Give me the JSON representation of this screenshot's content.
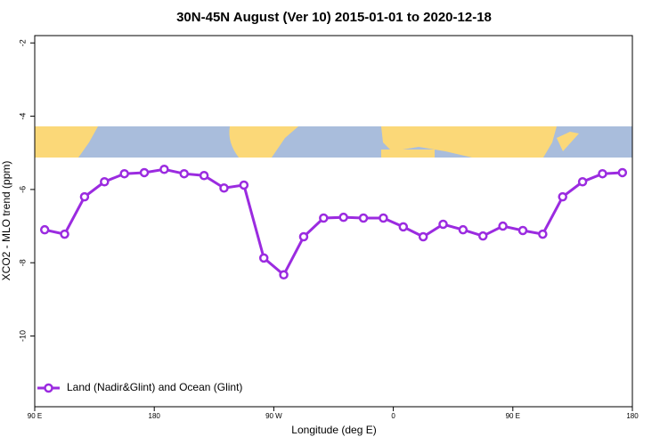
{
  "chart_data": {
    "type": "line",
    "title": "30N-45N August (Ver 10)   2015-01-01 to 2020-12-18",
    "x_label": "Longitude (deg E)",
    "y_label": "XCO2 - MLO trend (ppm)",
    "x": [
      97.5,
      112.5,
      127.5,
      142.5,
      157.5,
      172.5,
      187.5,
      202.5,
      217.5,
      232.5,
      247.5,
      262.5,
      277.5,
      292.5,
      307.5,
      322.5,
      337.5,
      352.5,
      367.5,
      382.5,
      397.5,
      412.5,
      427.5,
      442.5,
      457.5,
      472.5,
      487.5,
      502.5,
      517.5,
      532.5
    ],
    "series": [
      {
        "name": "Land (Nadir&Glint) and Ocean (Glint)",
        "color": "#9b2be0",
        "values": [
          -7.1,
          -7.22,
          -6.2,
          -5.79,
          -5.57,
          -5.54,
          -5.45,
          -5.57,
          -5.62,
          -5.96,
          -5.88,
          -7.87,
          -8.33,
          -7.29,
          -6.78,
          -6.76,
          -6.78,
          -6.78,
          -7.02,
          -7.29,
          -6.95,
          -7.1,
          -7.27,
          -7.0,
          -7.12,
          -7.22,
          -6.2,
          -5.79,
          -5.57,
          -5.54
        ]
      }
    ],
    "xlim": [
      90,
      540
    ],
    "xticks": [
      {
        "value": 90,
        "label": "90 E"
      },
      {
        "value": 180,
        "label": "180"
      },
      {
        "value": 270,
        "label": "90 W"
      },
      {
        "value": 360,
        "label": "0"
      },
      {
        "value": 450,
        "label": "90 E"
      },
      {
        "value": 540,
        "label": "180"
      }
    ],
    "ylim": [
      -11.93,
      -1.8
    ],
    "yticks": [
      -2,
      -4,
      -6,
      -8,
      -10
    ],
    "legend": "bottom-left"
  }
}
